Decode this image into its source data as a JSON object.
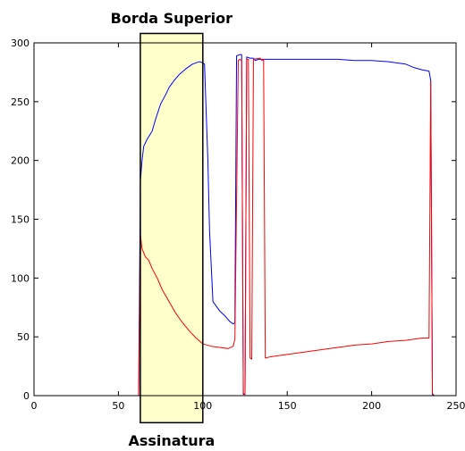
{
  "chart_data": {
    "type": "line",
    "title": "",
    "xlabel": "",
    "ylabel": "",
    "xlim": [
      0,
      250
    ],
    "ylim": [
      0,
      300
    ],
    "xticks": [
      0,
      50,
      100,
      150,
      200,
      250
    ],
    "yticks": [
      0,
      50,
      100,
      150,
      200,
      250,
      300
    ],
    "grid": false,
    "annotations": [
      {
        "text": "Borda Superior",
        "placement": "above highlight box"
      },
      {
        "text": "Assinatura",
        "placement": "below highlight box"
      }
    ],
    "highlight": {
      "x": [
        63,
        100
      ],
      "y": [
        -23,
        308
      ],
      "fill": "#ffffcc",
      "stroke": "#000000"
    },
    "series": [
      {
        "color": "#0000ff",
        "points": [
          [
            0,
            0
          ],
          [
            62,
            0
          ],
          [
            63,
            182
          ],
          [
            64,
            200
          ],
          [
            65,
            212
          ],
          [
            67,
            218
          ],
          [
            70,
            225
          ],
          [
            72,
            235
          ],
          [
            75,
            248
          ],
          [
            78,
            256
          ],
          [
            80,
            262
          ],
          [
            83,
            268
          ],
          [
            86,
            273
          ],
          [
            90,
            278
          ],
          [
            94,
            282
          ],
          [
            98,
            284
          ],
          [
            100,
            283
          ],
          [
            101,
            282
          ],
          [
            103,
            200
          ],
          [
            104,
            140
          ],
          [
            106,
            80
          ],
          [
            110,
            72
          ],
          [
            113,
            68
          ],
          [
            116,
            63
          ],
          [
            118,
            61
          ],
          [
            119,
            62
          ],
          [
            120,
            289
          ],
          [
            122,
            290
          ],
          [
            123,
            290
          ],
          [
            124,
            1
          ],
          [
            125,
            1
          ],
          [
            126,
            288
          ],
          [
            128,
            287
          ],
          [
            130,
            287
          ],
          [
            131,
            285
          ],
          [
            133,
            286
          ],
          [
            135,
            286
          ],
          [
            137,
            286
          ],
          [
            140,
            286
          ],
          [
            150,
            286
          ],
          [
            160,
            286
          ],
          [
            170,
            286
          ],
          [
            180,
            286
          ],
          [
            190,
            285
          ],
          [
            200,
            285
          ],
          [
            210,
            284
          ],
          [
            220,
            282
          ],
          [
            225,
            279
          ],
          [
            230,
            277
          ],
          [
            234,
            276
          ],
          [
            235,
            268
          ],
          [
            236,
            1
          ],
          [
            237,
            0
          ]
        ]
      },
      {
        "color": "#ff0000",
        "points": [
          [
            0,
            0
          ],
          [
            62,
            0
          ],
          [
            63,
            137
          ],
          [
            64,
            125
          ],
          [
            66,
            118
          ],
          [
            68,
            115
          ],
          [
            70,
            108
          ],
          [
            73,
            100
          ],
          [
            76,
            90
          ],
          [
            80,
            80
          ],
          [
            84,
            70
          ],
          [
            88,
            62
          ],
          [
            92,
            55
          ],
          [
            96,
            49
          ],
          [
            100,
            44
          ],
          [
            105,
            42
          ],
          [
            110,
            41
          ],
          [
            115,
            40
          ],
          [
            118,
            42
          ],
          [
            119,
            48
          ],
          [
            121,
            285
          ],
          [
            122,
            286
          ],
          [
            123,
            285
          ],
          [
            124,
            2
          ],
          [
            125,
            1
          ],
          [
            126,
            286
          ],
          [
            127,
            286
          ],
          [
            128,
            32
          ],
          [
            129,
            31
          ],
          [
            130,
            286
          ],
          [
            134,
            287
          ],
          [
            135,
            285
          ],
          [
            136,
            286
          ],
          [
            137,
            32
          ],
          [
            140,
            33
          ],
          [
            150,
            35
          ],
          [
            160,
            37
          ],
          [
            170,
            39
          ],
          [
            180,
            41
          ],
          [
            190,
            43
          ],
          [
            200,
            44
          ],
          [
            210,
            46
          ],
          [
            220,
            47
          ],
          [
            230,
            49
          ],
          [
            234,
            49
          ],
          [
            235,
            267
          ],
          [
            236,
            2
          ],
          [
            237,
            0
          ]
        ]
      }
    ]
  }
}
